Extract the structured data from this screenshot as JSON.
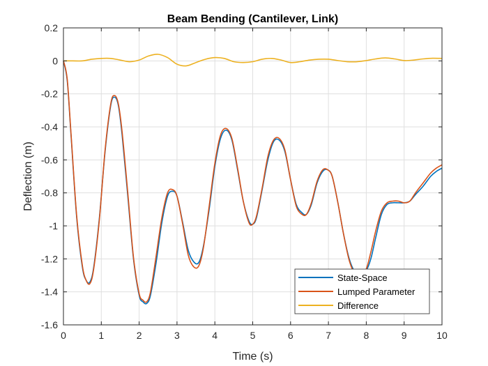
{
  "chart_data": {
    "type": "line",
    "title": "Beam Bending (Cantilever, Link)",
    "xlabel": "Time (s)",
    "ylabel": "Deflection (m)",
    "xlim": [
      0,
      10
    ],
    "ylim": [
      -1.6,
      0.2
    ],
    "xticks": [
      0,
      1,
      2,
      3,
      4,
      5,
      6,
      7,
      8,
      9,
      10
    ],
    "xtick_labels": [
      "0",
      "1",
      "2",
      "3",
      "4",
      "5",
      "6",
      "7",
      "8",
      "9",
      "10"
    ],
    "yticks": [
      0.2,
      0,
      -0.2,
      -0.4,
      -0.6,
      -0.8,
      -1,
      -1.2,
      -1.4,
      -1.6
    ],
    "ytick_labels": [
      "0.2",
      "0",
      "-0.2",
      "-0.4",
      "-0.6",
      "-0.8",
      "-1",
      "-1.2",
      "-1.4",
      "-1.6"
    ],
    "grid": true,
    "legend_position": "bottom-right",
    "series": [
      {
        "name": "State-Space",
        "color": "#0072BD",
        "x": [
          0,
          0.1,
          0.2,
          0.35,
          0.5,
          0.6,
          0.7,
          0.8,
          0.95,
          1.1,
          1.25,
          1.35,
          1.45,
          1.55,
          1.7,
          1.85,
          2.0,
          2.1,
          2.2,
          2.3,
          2.45,
          2.6,
          2.75,
          2.88,
          3.0,
          3.15,
          3.3,
          3.45,
          3.58,
          3.7,
          3.85,
          4.0,
          4.15,
          4.3,
          4.45,
          4.6,
          4.75,
          4.9,
          5.0,
          5.1,
          5.25,
          5.4,
          5.55,
          5.7,
          5.85,
          6.0,
          6.15,
          6.3,
          6.42,
          6.55,
          6.7,
          6.85,
          6.98,
          7.1,
          7.25,
          7.4,
          7.55,
          7.7,
          7.85,
          8.0,
          8.12,
          8.25,
          8.4,
          8.55,
          8.7,
          8.85,
          9.0,
          9.15,
          9.3,
          9.5,
          9.7,
          9.85,
          10.0
        ],
        "y": [
          0,
          -0.12,
          -0.45,
          -0.95,
          -1.25,
          -1.33,
          -1.34,
          -1.25,
          -0.95,
          -0.55,
          -0.27,
          -0.22,
          -0.27,
          -0.45,
          -0.82,
          -1.2,
          -1.42,
          -1.46,
          -1.47,
          -1.42,
          -1.22,
          -0.98,
          -0.82,
          -0.79,
          -0.82,
          -0.98,
          -1.15,
          -1.22,
          -1.22,
          -1.12,
          -0.9,
          -0.64,
          -0.47,
          -0.42,
          -0.48,
          -0.66,
          -0.85,
          -0.97,
          -0.99,
          -0.95,
          -0.78,
          -0.6,
          -0.49,
          -0.48,
          -0.55,
          -0.72,
          -0.87,
          -0.92,
          -0.93,
          -0.87,
          -0.74,
          -0.67,
          -0.66,
          -0.7,
          -0.86,
          -1.05,
          -1.2,
          -1.28,
          -1.3,
          -1.27,
          -1.2,
          -1.07,
          -0.93,
          -0.87,
          -0.86,
          -0.86,
          -0.86,
          -0.85,
          -0.81,
          -0.76,
          -0.7,
          -0.67,
          -0.65
        ]
      },
      {
        "name": "Lumped Parameter",
        "color": "#D95319",
        "x": [
          0,
          0.1,
          0.2,
          0.35,
          0.5,
          0.6,
          0.7,
          0.8,
          0.95,
          1.1,
          1.25,
          1.35,
          1.45,
          1.55,
          1.7,
          1.85,
          2.0,
          2.1,
          2.2,
          2.3,
          2.45,
          2.6,
          2.75,
          2.88,
          3.0,
          3.15,
          3.3,
          3.45,
          3.58,
          3.7,
          3.85,
          4.0,
          4.15,
          4.3,
          4.45,
          4.6,
          4.75,
          4.9,
          5.0,
          5.1,
          5.25,
          5.4,
          5.55,
          5.7,
          5.85,
          6.0,
          6.15,
          6.3,
          6.42,
          6.55,
          6.7,
          6.85,
          6.98,
          7.1,
          7.25,
          7.4,
          7.55,
          7.7,
          7.85,
          8.0,
          8.12,
          8.25,
          8.4,
          8.55,
          8.7,
          8.85,
          9.0,
          9.15,
          9.3,
          9.5,
          9.7,
          9.85,
          10.0
        ],
        "y": [
          0,
          -0.11,
          -0.44,
          -0.94,
          -1.24,
          -1.33,
          -1.35,
          -1.26,
          -0.96,
          -0.54,
          -0.26,
          -0.21,
          -0.26,
          -0.43,
          -0.8,
          -1.19,
          -1.41,
          -1.45,
          -1.46,
          -1.4,
          -1.18,
          -0.95,
          -0.8,
          -0.78,
          -0.82,
          -0.99,
          -1.18,
          -1.25,
          -1.24,
          -1.13,
          -0.88,
          -0.62,
          -0.45,
          -0.41,
          -0.47,
          -0.65,
          -0.85,
          -0.98,
          -0.99,
          -0.94,
          -0.77,
          -0.58,
          -0.48,
          -0.47,
          -0.54,
          -0.72,
          -0.88,
          -0.93,
          -0.93,
          -0.86,
          -0.73,
          -0.66,
          -0.66,
          -0.7,
          -0.86,
          -1.05,
          -1.21,
          -1.29,
          -1.3,
          -1.26,
          -1.16,
          -1.03,
          -0.91,
          -0.86,
          -0.85,
          -0.85,
          -0.86,
          -0.85,
          -0.8,
          -0.74,
          -0.68,
          -0.65,
          -0.63
        ]
      },
      {
        "name": "Difference",
        "color": "#EDB120",
        "x": [
          0,
          0.25,
          0.5,
          0.75,
          1.0,
          1.25,
          1.5,
          1.75,
          2.0,
          2.25,
          2.5,
          2.75,
          3.0,
          3.25,
          3.5,
          3.75,
          4.0,
          4.25,
          4.5,
          4.75,
          5.0,
          5.25,
          5.5,
          5.75,
          6.0,
          6.25,
          6.5,
          6.75,
          7.0,
          7.25,
          7.5,
          7.75,
          8.0,
          8.25,
          8.5,
          8.75,
          9.0,
          9.25,
          9.5,
          9.75,
          10.0
        ],
        "y": [
          0,
          0,
          0,
          0.01,
          0.015,
          0.015,
          0.005,
          -0.005,
          0.005,
          0.03,
          0.04,
          0.02,
          -0.02,
          -0.03,
          -0.01,
          0.01,
          0.02,
          0.015,
          -0.005,
          -0.01,
          -0.005,
          0.01,
          0.015,
          0.005,
          -0.01,
          -0.005,
          0.005,
          0.01,
          0.01,
          0.002,
          -0.005,
          -0.005,
          0.002,
          0.012,
          0.018,
          0.012,
          0.002,
          0.005,
          0.012,
          0.016,
          0.015
        ]
      }
    ]
  }
}
